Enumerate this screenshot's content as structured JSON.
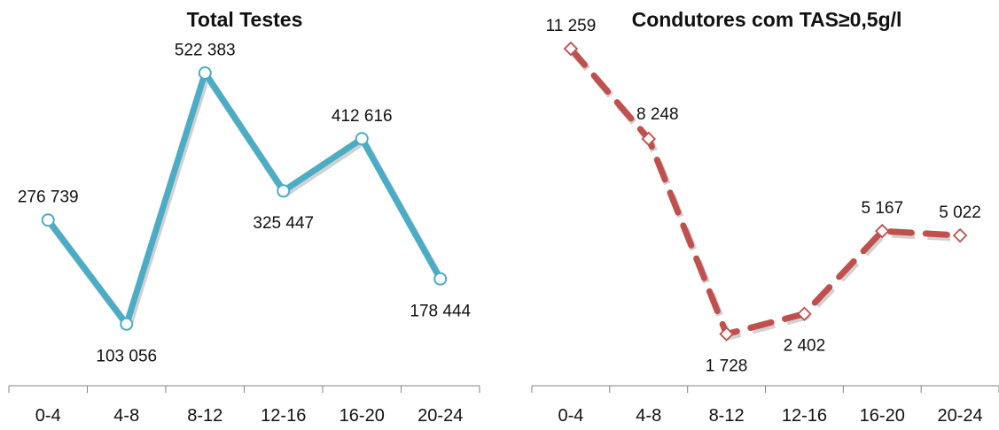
{
  "chart_data": [
    {
      "type": "line",
      "title": "Total Testes",
      "categories": [
        "0-4",
        "4-8",
        "8-12",
        "12-16",
        "16-20",
        "20-24"
      ],
      "values": [
        276739,
        103056,
        522383,
        325447,
        412616,
        178444
      ],
      "value_labels": [
        "276 739",
        "103 056",
        "522 383",
        "325 447",
        "412 616",
        "178 444"
      ],
      "xlabel": "",
      "ylabel": "",
      "ylim": [
        0,
        600000
      ],
      "grid": false,
      "legend": "none",
      "line_color": "#4BACC6",
      "line_style": "solid",
      "marker": "circle"
    },
    {
      "type": "line",
      "title": "Condutores com TAS≥0,5g/l",
      "categories": [
        "0-4",
        "4-8",
        "8-12",
        "12-16",
        "16-20",
        "20-24"
      ],
      "values": [
        11259,
        8248,
        1728,
        2402,
        5167,
        5022
      ],
      "value_labels": [
        "11 259",
        "8 248",
        "1 728",
        "2 402",
        "5 167",
        "5 022"
      ],
      "xlabel": "",
      "ylabel": "",
      "ylim": [
        0,
        12000
      ],
      "grid": false,
      "legend": "none",
      "line_color": "#C0504D",
      "line_style": "dashed",
      "marker": "diamond"
    }
  ]
}
